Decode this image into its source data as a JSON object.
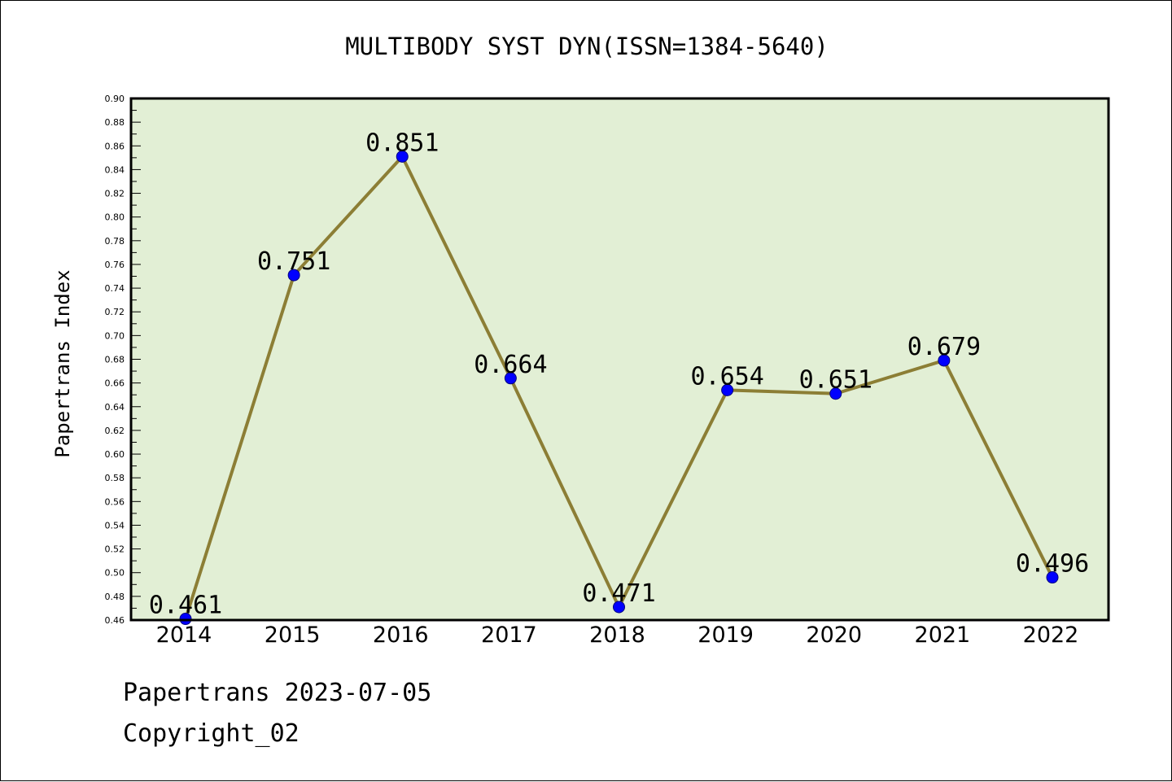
{
  "chart_data": {
    "type": "line",
    "title": "MULTIBODY SYST DYN(ISSN=1384-5640)",
    "xlabel": "",
    "ylabel": "Papertrans Index",
    "categories": [
      "2014",
      "2015",
      "2016",
      "2017",
      "2018",
      "2019",
      "2020",
      "2021",
      "2022"
    ],
    "values": [
      0.461,
      0.751,
      0.851,
      0.664,
      0.471,
      0.654,
      0.651,
      0.679,
      0.496
    ],
    "data_labels": [
      "0.461",
      "0.751",
      "0.851",
      "0.664",
      "0.471",
      "0.654",
      "0.651",
      "0.679",
      "0.496"
    ],
    "ylim": [
      0.46,
      0.9
    ],
    "yticks": [
      "0.46",
      "0.48",
      "0.50",
      "0.52",
      "0.54",
      "0.56",
      "0.58",
      "0.60",
      "0.62",
      "0.64",
      "0.66",
      "0.68",
      "0.70",
      "0.72",
      "0.74",
      "0.76",
      "0.78",
      "0.80",
      "0.82",
      "0.84",
      "0.86",
      "0.88",
      "0.90"
    ],
    "grid": false,
    "colors": {
      "plot_background": "#e2efd5",
      "line": "#8c7e35",
      "marker": "#0000ff"
    }
  },
  "footer": {
    "line1": "Papertrans 2023-07-05",
    "line2": "Copyright_02"
  }
}
